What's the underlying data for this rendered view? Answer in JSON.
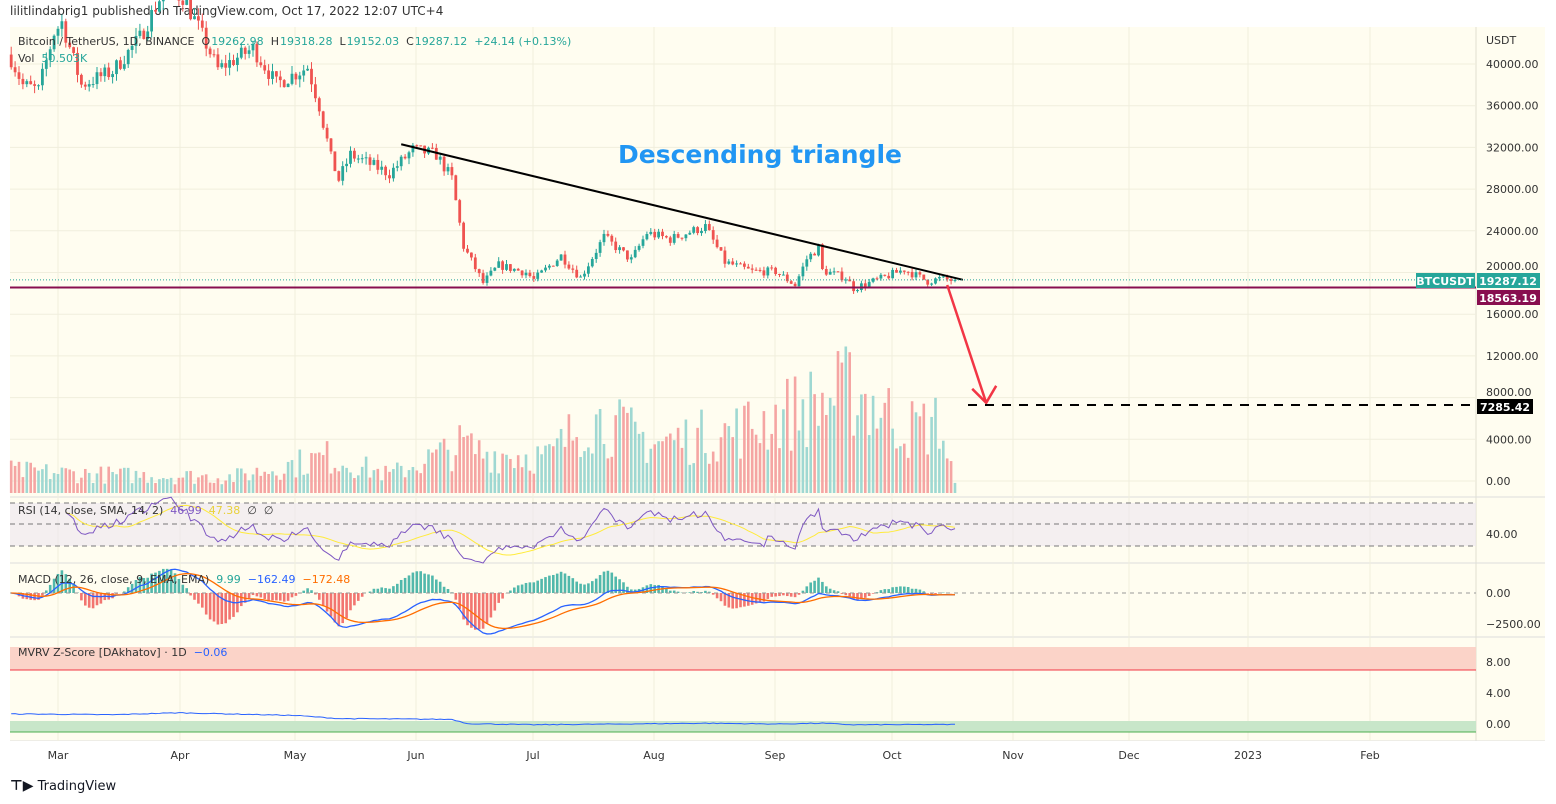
{
  "published": "lilitlindabrig1 published on TradingView.com, Oct 17, 2022 12:07 UTC+4",
  "legend": {
    "symbol": "Bitcoin / TetherUS, 1D, BINANCE",
    "o_label": "O",
    "o": "19262.98",
    "h_label": "H",
    "h": "19318.28",
    "l_label": "L",
    "l": "19152.03",
    "c_label": "C",
    "c": "19287.12",
    "change": "+24.14 (+0.13%)",
    "vol_label": "Vol",
    "vol": "50.503K"
  },
  "annotation": "Descending triangle",
  "currency": "USDT",
  "price_tags": {
    "symbol": "BTCUSDT",
    "last": "19287.12",
    "support": "18563.19",
    "target": "7285.42"
  },
  "colors": {
    "up": "#26a69a",
    "down": "#ef5350",
    "bg": "#fffdf0",
    "support": "#880e4f",
    "arrow": "#f23645",
    "rsi": "#7e57c2",
    "rsi_ma": "#ffeb3b",
    "macd": "#2962ff",
    "signal": "#ff6d00",
    "mvrv": "#2962ff"
  },
  "rsi": {
    "label": "RSI (14, close, SMA, 14, 2)",
    "value": "46.99",
    "ma": "47.38",
    "extra1": "∅",
    "extra2": "∅",
    "axis": "40.00"
  },
  "macd": {
    "label": "MACD (12, 26, close, 9, EMA, EMA)",
    "hist": "9.99",
    "macd": "−162.49",
    "signal": "−172.48",
    "axis": [
      "0.00",
      "−2500.00"
    ]
  },
  "mvrv": {
    "label": "MVRV Z-Score [DAkhatov] · 1D",
    "value": "−0.06",
    "axis": [
      "8.00",
      "4.00",
      "0.00"
    ],
    "keypoints": [
      [
        "2022-02-17",
        1.3
      ],
      [
        "2022-03-15",
        1.2
      ],
      [
        "2022-04-01",
        1.45
      ],
      [
        "2022-05-01",
        1.1
      ],
      [
        "2022-05-12",
        0.7
      ],
      [
        "2022-06-10",
        0.6
      ],
      [
        "2022-06-14",
        0.05
      ],
      [
        "2022-07-01",
        -0.1
      ],
      [
        "2022-08-14",
        0.1
      ],
      [
        "2022-09-01",
        0.0
      ],
      [
        "2022-09-13",
        0.1
      ],
      [
        "2022-09-21",
        -0.1
      ],
      [
        "2022-10-17",
        -0.06
      ]
    ]
  },
  "brand": "TradingView",
  "chart_data": {
    "type": "candlestick",
    "y_axis_ticks": [
      "40000.00",
      "36000.00",
      "32000.00",
      "28000.00",
      "24000.00",
      "20000.00",
      "16000.00",
      "12000.00",
      "8000.00",
      "4000.00",
      "0.00"
    ],
    "ylim": [
      0,
      42000
    ],
    "x_axis_ticks": [
      "Mar",
      "Apr",
      "May",
      "Jun",
      "Jul",
      "Aug",
      "Sep",
      "Oct",
      "Nov",
      "Dec",
      "2023",
      "Feb"
    ],
    "close_keypoints": [
      [
        "2022-02-17",
        40500
      ],
      [
        "2022-02-20",
        38000
      ],
      [
        "2022-02-24",
        37500
      ],
      [
        "2022-02-28",
        43000
      ],
      [
        "2022-03-02",
        44000
      ],
      [
        "2022-03-07",
        38000
      ],
      [
        "2022-03-15",
        39300
      ],
      [
        "2022-03-22",
        42500
      ],
      [
        "2022-03-28",
        47000
      ],
      [
        "2022-04-02",
        46500
      ],
      [
        "2022-04-06",
        43500
      ],
      [
        "2022-04-11",
        39500
      ],
      [
        "2022-04-20",
        41500
      ],
      [
        "2022-04-26",
        38100
      ],
      [
        "2022-05-04",
        39700
      ],
      [
        "2022-05-07",
        36000
      ],
      [
        "2022-05-10",
        31000
      ],
      [
        "2022-05-12",
        28900
      ],
      [
        "2022-05-15",
        31300
      ],
      [
        "2022-05-25",
        29500
      ],
      [
        "2022-05-31",
        31800
      ],
      [
        "2022-06-06",
        31300
      ],
      [
        "2022-06-10",
        29000
      ],
      [
        "2022-06-13",
        22500
      ],
      [
        "2022-06-18",
        19000
      ],
      [
        "2022-06-22",
        20700
      ],
      [
        "2022-06-29",
        20000
      ],
      [
        "2022-07-01",
        19300
      ],
      [
        "2022-07-08",
        21600
      ],
      [
        "2022-07-13",
        19500
      ],
      [
        "2022-07-19",
        23400
      ],
      [
        "2022-07-26",
        21200
      ],
      [
        "2022-07-30",
        23800
      ],
      [
        "2022-08-05",
        23200
      ],
      [
        "2022-08-10",
        23900
      ],
      [
        "2022-08-14",
        24400
      ],
      [
        "2022-08-19",
        21000
      ],
      [
        "2022-08-26",
        20100
      ],
      [
        "2022-09-01",
        20100
      ],
      [
        "2022-09-06",
        18800
      ],
      [
        "2022-09-09",
        21300
      ],
      [
        "2022-09-12",
        22400
      ],
      [
        "2022-09-13",
        20200
      ],
      [
        "2022-09-19",
        19500
      ],
      [
        "2022-09-21",
        18500
      ],
      [
        "2022-09-28",
        19400
      ],
      [
        "2022-10-04",
        20300
      ],
      [
        "2022-10-10",
        19150
      ],
      [
        "2022-10-13",
        19400
      ],
      [
        "2022-10-16",
        19262.98
      ],
      [
        "2022-10-17",
        19287.12
      ]
    ],
    "volume_keypoints_k": [
      [
        "2022-02-17",
        110
      ],
      [
        "2022-03-15",
        90
      ],
      [
        "2022-04-15",
        80
      ],
      [
        "2022-05-09",
        180
      ],
      [
        "2022-05-25",
        90
      ],
      [
        "2022-06-13",
        240
      ],
      [
        "2022-06-18",
        200
      ],
      [
        "2022-07-05",
        180
      ],
      [
        "2022-07-15",
        380
      ],
      [
        "2022-08-01",
        250
      ],
      [
        "2022-08-20",
        300
      ],
      [
        "2022-09-07",
        420
      ],
      [
        "2022-09-13",
        450
      ],
      [
        "2022-09-21",
        520
      ],
      [
        "2022-10-05",
        320
      ],
      [
        "2022-10-13",
        350
      ],
      [
        "2022-10-17",
        50.5
      ]
    ],
    "trendline": [
      [
        "2022-05-28",
        32300
      ],
      [
        "2022-10-19",
        19300
      ]
    ],
    "support": 18563.19,
    "arrow": [
      [
        "2022-10-15",
        18800
      ],
      [
        "2022-10-25",
        7500
      ]
    ],
    "target": 7285.42
  }
}
